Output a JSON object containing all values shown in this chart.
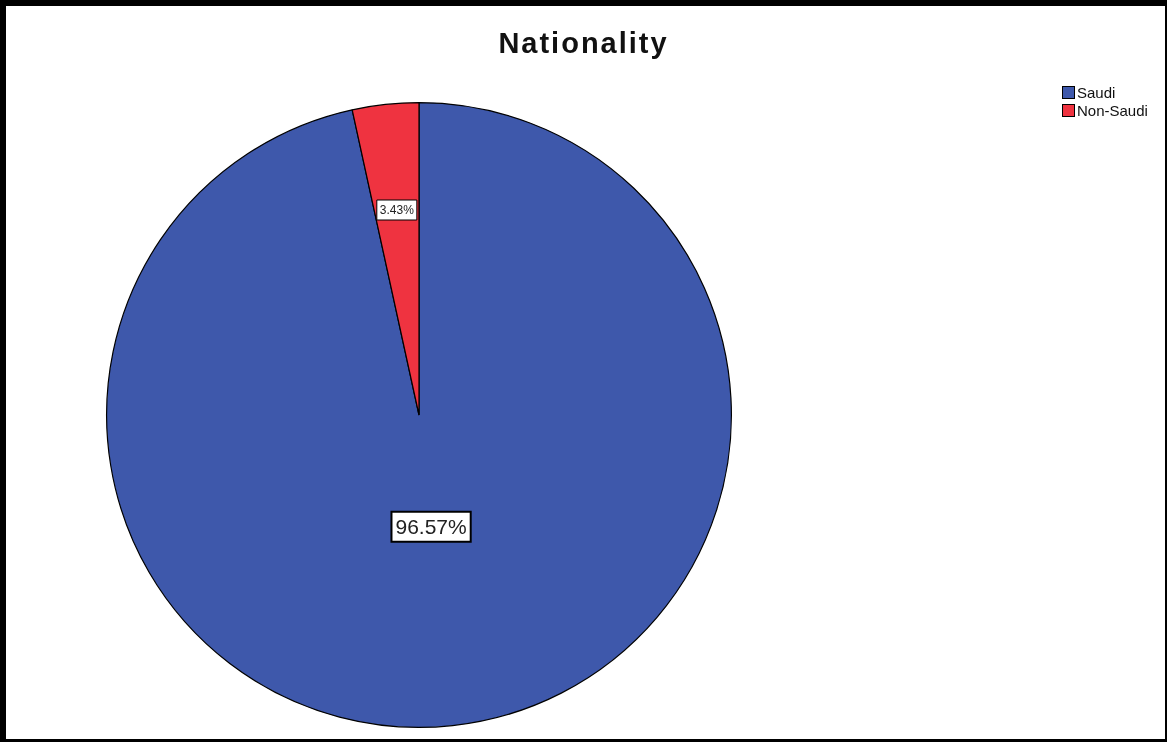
{
  "chart_data": {
    "type": "pie",
    "title": "Nationality",
    "categories": [
      "Saudi",
      "Non-Saudi"
    ],
    "values": [
      96.57,
      3.43
    ],
    "colors": [
      "#3e58ab",
      "#ef3340"
    ],
    "value_labels": [
      "96.57%",
      "3.43%"
    ],
    "legend": "top right"
  }
}
